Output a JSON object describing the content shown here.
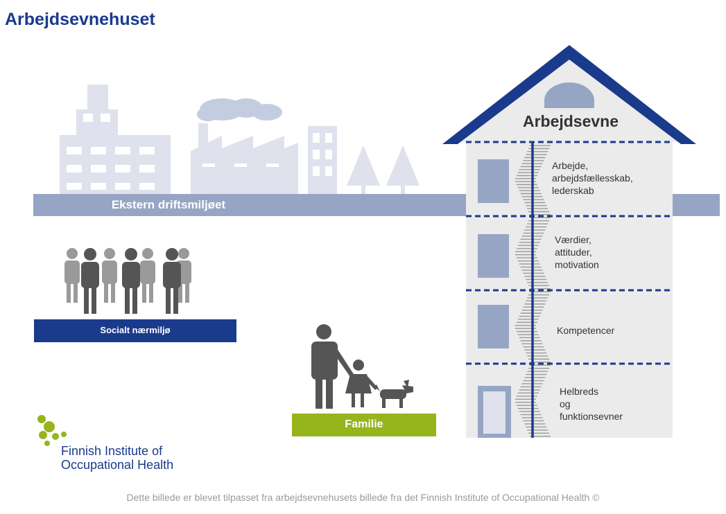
{
  "title": "Arbejdsevnehuset",
  "house": {
    "title": "Arbejdsevne",
    "floors": [
      {
        "lines": [
          "Arbejde,",
          "arbejdsfællesskab,",
          "lederskab"
        ]
      },
      {
        "lines": [
          "Værdier,",
          "attituder,",
          "motivation"
        ]
      },
      {
        "lines": [
          "Kompetencer"
        ]
      },
      {
        "lines": [
          "Helbreds",
          "og",
          "funktionsevner"
        ]
      }
    ]
  },
  "external_label": "Ekstern driftsmiljøet",
  "social_label": "Socialt nærmiljø",
  "family_label": "Familie",
  "logo": {
    "line1": "Finnish Institute of",
    "line2": "Occupational Health"
  },
  "footer": "Dette billede er blevet tilpasset fra arbejdsevnehusets billede fra det Finnish Institute of Occupational Health ©",
  "colors": {
    "navy": "#1a3a8c",
    "steel": "#97a5c5",
    "pale": "#dfe2ec",
    "green": "#96b51d",
    "person_dark": "#555555",
    "person_light": "#9a9a9a"
  }
}
